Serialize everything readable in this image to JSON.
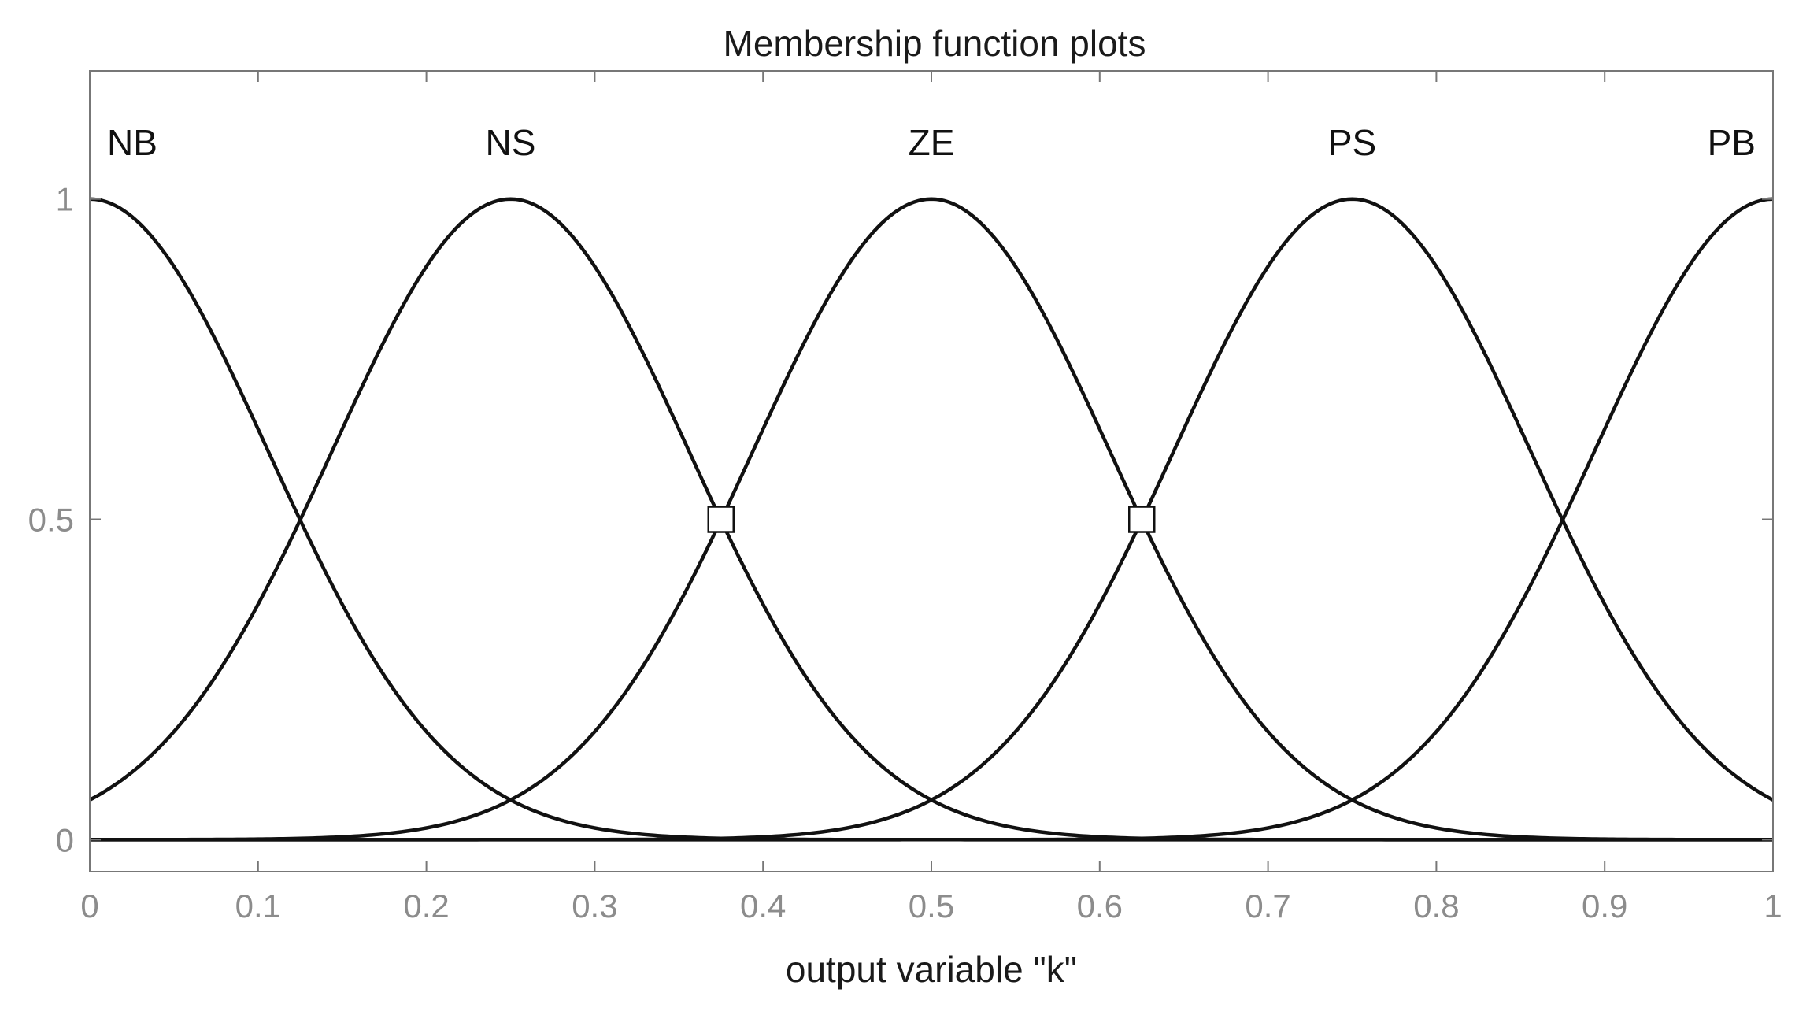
{
  "chart_data": {
    "type": "line",
    "title": "Membership function plots",
    "xlabel": "output variable \"k\"",
    "ylabel": "",
    "xlim": [
      0,
      1
    ],
    "ylim": [
      -0.05,
      1.2
    ],
    "xticks": [
      0,
      0.1,
      0.2,
      0.3,
      0.4,
      0.5,
      0.6,
      0.7,
      0.8,
      0.9,
      1
    ],
    "xtick_labels": [
      "0",
      "0.1",
      "0.2",
      "0.3",
      "0.4",
      "0.5",
      "0.6",
      "0.7",
      "0.8",
      "0.9",
      "1"
    ],
    "yticks": [
      0,
      0.5,
      1
    ],
    "ytick_labels": [
      "0",
      "0.5",
      "1"
    ],
    "grid": false,
    "curve_shape": "gaussian",
    "series": [
      {
        "name": "NB",
        "center": 0,
        "sigma": 0.106
      },
      {
        "name": "NS",
        "center": 0.25,
        "sigma": 0.106
      },
      {
        "name": "ZE",
        "center": 0.5,
        "sigma": 0.106
      },
      {
        "name": "PS",
        "center": 0.75,
        "sigma": 0.106
      },
      {
        "name": "PB",
        "center": 1,
        "sigma": 0.106
      }
    ],
    "markers": [
      {
        "x": 0.375,
        "y": 0.5
      },
      {
        "x": 0.625,
        "y": 0.5
      }
    ],
    "colors": {
      "curve": "#111111",
      "axes": "#777777",
      "tick_text": "#8c8c8c",
      "text": "#1a1a1a"
    }
  }
}
